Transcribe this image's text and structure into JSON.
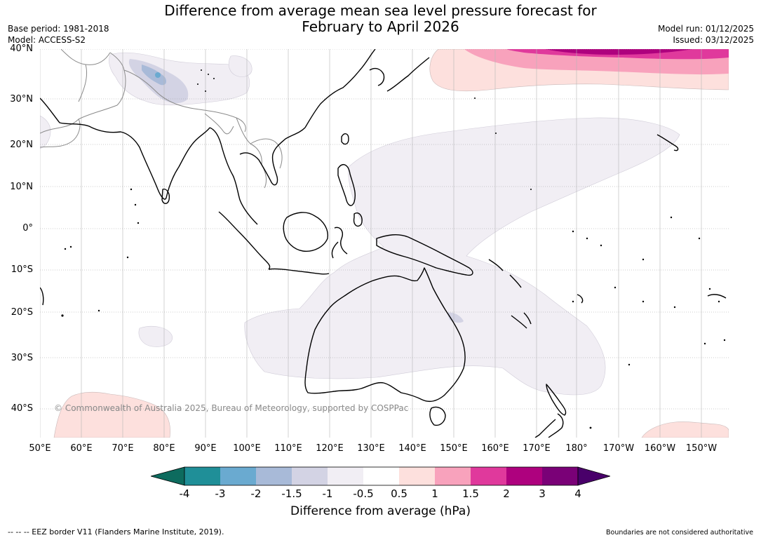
{
  "title": {
    "line1": "Difference from average mean sea level pressure forecast for",
    "line2": "February to April 2026"
  },
  "meta": {
    "base_period": "Base period: 1981-2018",
    "model": "Model: ACCESS-S2",
    "model_run": "Model run: 01/12/2025",
    "issued": "Issued: 03/12/2025"
  },
  "latitude_labels": [
    "40°N",
    "30°N",
    "20°N",
    "10°N",
    "0°",
    "10°S",
    "20°S",
    "30°S",
    "40°S"
  ],
  "longitude_labels": [
    "50°E",
    "60°E",
    "70°E",
    "80°E",
    "90°E",
    "100°E",
    "110°E",
    "120°E",
    "130°E",
    "140°E",
    "150°E",
    "160°E",
    "170°E",
    "180°",
    "170°W",
    "160°W",
    "150°W"
  ],
  "copyright": "© Commonwealth of Australia 2025, Bureau of Meteorology, supported by COSPPac",
  "colorbar": {
    "ticks": [
      "-4",
      "-3",
      "-2",
      "-1.5",
      "-1",
      "-0.5",
      "0.5",
      "1",
      "1.5",
      "2",
      "3",
      "4"
    ],
    "label": "Difference from average (hPa)",
    "colors": {
      "below_min": "#0d6b5e",
      "bins": [
        "#1f8f98",
        "#6aaad0",
        "#a8bad8",
        "#d3d3e4",
        "#f1eef4",
        "#ffffff",
        "#fde0dd",
        "#f8a2bc",
        "#e0399c",
        "#ae017e",
        "#7a0177"
      ],
      "above_max": "#49006a"
    }
  },
  "footer": {
    "eez": "-- -- -- EEZ border V11 (Flanders Marine Institute, 2019).",
    "boundaries": "Boundaries are not considered authoritative"
  }
}
